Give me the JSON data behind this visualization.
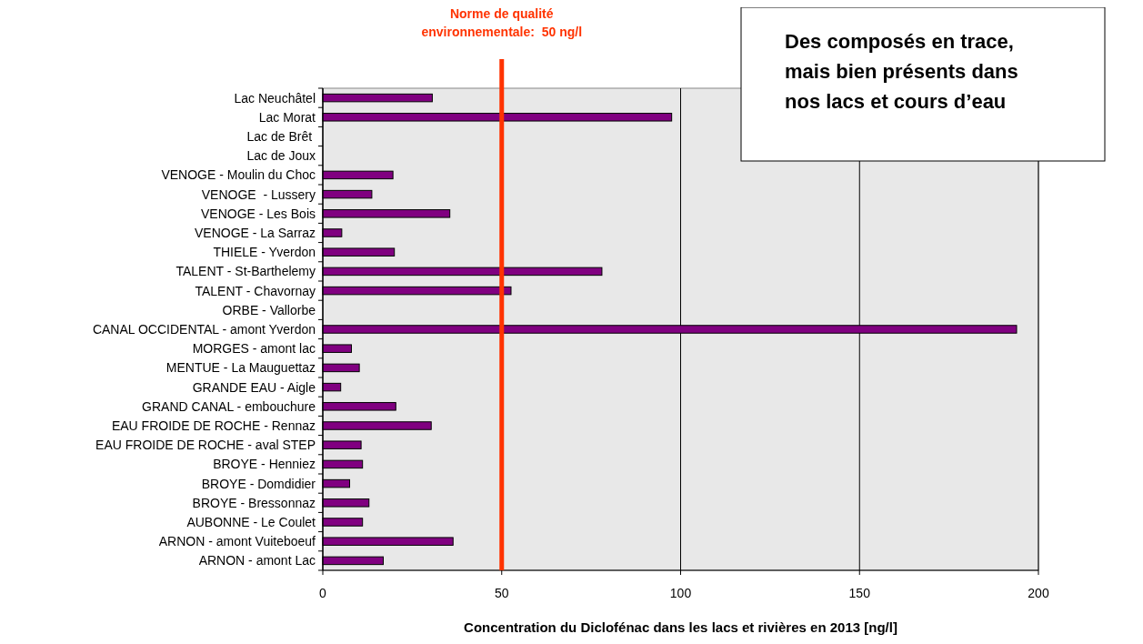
{
  "chart_data": {
    "type": "bar",
    "orientation": "horizontal",
    "xlabel": "Concentration du Diclofénac dans les lacs et rivières en 2013 [ng/l]",
    "categories": [
      "Lac Neuchâtel",
      "Lac Morat",
      "Lac de Brêt ",
      "Lac de Joux",
      "VENOGE - Moulin du Choc",
      "VENOGE  - Lussery",
      "VENOGE - Les Bois",
      "VENOGE - La Sarraz",
      "THIELE - Yverdon",
      "TALENT - St-Barthelemy",
      "TALENT - Chavornay",
      "ORBE - Vallorbe",
      "CANAL OCCIDENTAL - amont Yverdon",
      "MORGES - amont lac",
      "MENTUE - La Mauguettaz",
      "GRANDE EAU - Aigle",
      "GRAND CANAL - embouchure",
      "EAU FROIDE DE ROCHE - Rennaz",
      "EAU FROIDE DE ROCHE - aval STEP",
      "BROYE - Henniez",
      "BROYE - Domdidier",
      "BROYE - Bressonnaz",
      "AUBONNE - Le Coulet",
      "ARNON - amont Vuiteboeuf",
      "ARNON - amont Lac"
    ],
    "values": [
      30.6,
      97.5,
      null,
      null,
      19.6,
      13.7,
      35.5,
      5.3,
      20.0,
      78.0,
      52.6,
      null,
      193.9,
      8.0,
      10.2,
      5.0,
      20.4,
      30.3,
      10.7,
      11.1,
      7.5,
      12.9,
      11.1,
      36.4,
      16.9
    ],
    "color": "#800080",
    "xlim": [
      0,
      200
    ],
    "xticks": [
      0,
      50,
      100,
      150,
      200
    ],
    "grid": "x",
    "ref_lines": [
      {
        "axis": "x",
        "value": 50,
        "label": "Norme de qualité\nenvironnementale:  50 ng/l",
        "color": "#ff3300"
      }
    ],
    "annotations": [
      "Des composés en trace,\nmais bien présents dans\nnos lacs et cours d’eau"
    ]
  }
}
